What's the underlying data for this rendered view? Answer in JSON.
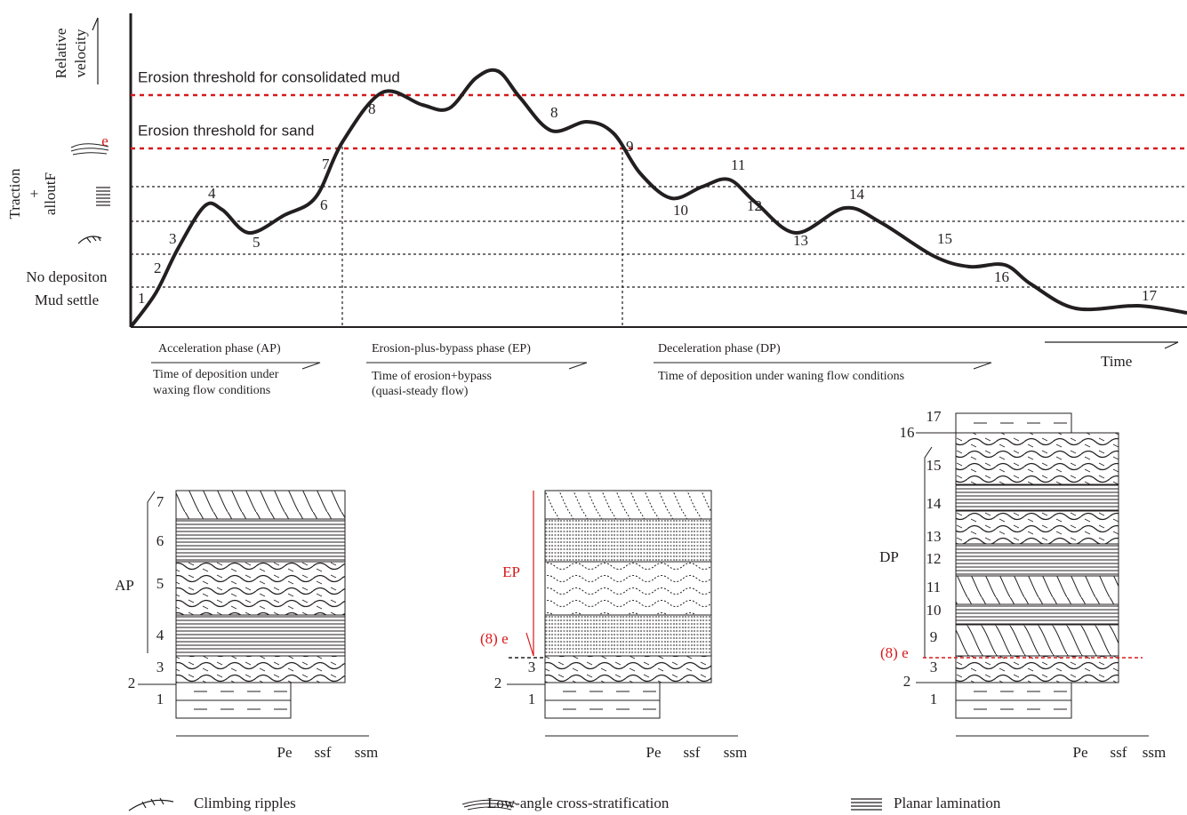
{
  "y_axis": {
    "relative_velocity": [
      "Relative",
      "velocity"
    ],
    "threshold_marker": "e",
    "traction": [
      "Traction",
      "+",
      "alloutF"
    ],
    "no_deposition": [
      "No depositon",
      "Mud settle"
    ]
  },
  "thresholds": [
    "Erosion threshold for consolidated mud",
    "Erosion threshold for sand"
  ],
  "curve_labels": [
    "1",
    "2",
    "3",
    "4",
    "5",
    "6",
    "7",
    "8",
    "8",
    "9",
    "10",
    "11",
    "12",
    "13",
    "14",
    "15",
    "16",
    "17"
  ],
  "phases": [
    {
      "name": "Acceleration phase (AP)",
      "description": [
        "Time of deposition under",
        "waxing flow conditions"
      ]
    },
    {
      "name": "Erosion-plus-bypass phase (EP)",
      "description": [
        "Time of erosion+bypass",
        "(quasi-steady flow)"
      ]
    },
    {
      "name": "Deceleration phase (DP)",
      "description": [
        "Time of deposition under waning flow conditions"
      ]
    }
  ],
  "time_axis": "Time",
  "columns": [
    {
      "phase": "AP",
      "layer_labels": [
        "7",
        "6",
        "5",
        "4",
        "3",
        "2",
        "1"
      ],
      "grain_size": [
        "Pe",
        "ssf",
        "ssm"
      ]
    },
    {
      "phase": "EP",
      "marker": "(8) e",
      "layer_labels": [
        "3",
        "2",
        "1"
      ],
      "grain_size": [
        "Pe",
        "ssf",
        "ssm"
      ]
    },
    {
      "phase": "DP",
      "marker": "(8) e",
      "layer_labels": [
        "17",
        "16",
        "15",
        "14",
        "13",
        "12",
        "11",
        "10",
        "9",
        "3",
        "2",
        "1"
      ],
      "grain_size": [
        "Pe",
        "ssf",
        "ssm"
      ]
    }
  ],
  "legend": [
    "Climbing ripples",
    "Low-angle cross-stratification",
    "Planar lamination"
  ]
}
